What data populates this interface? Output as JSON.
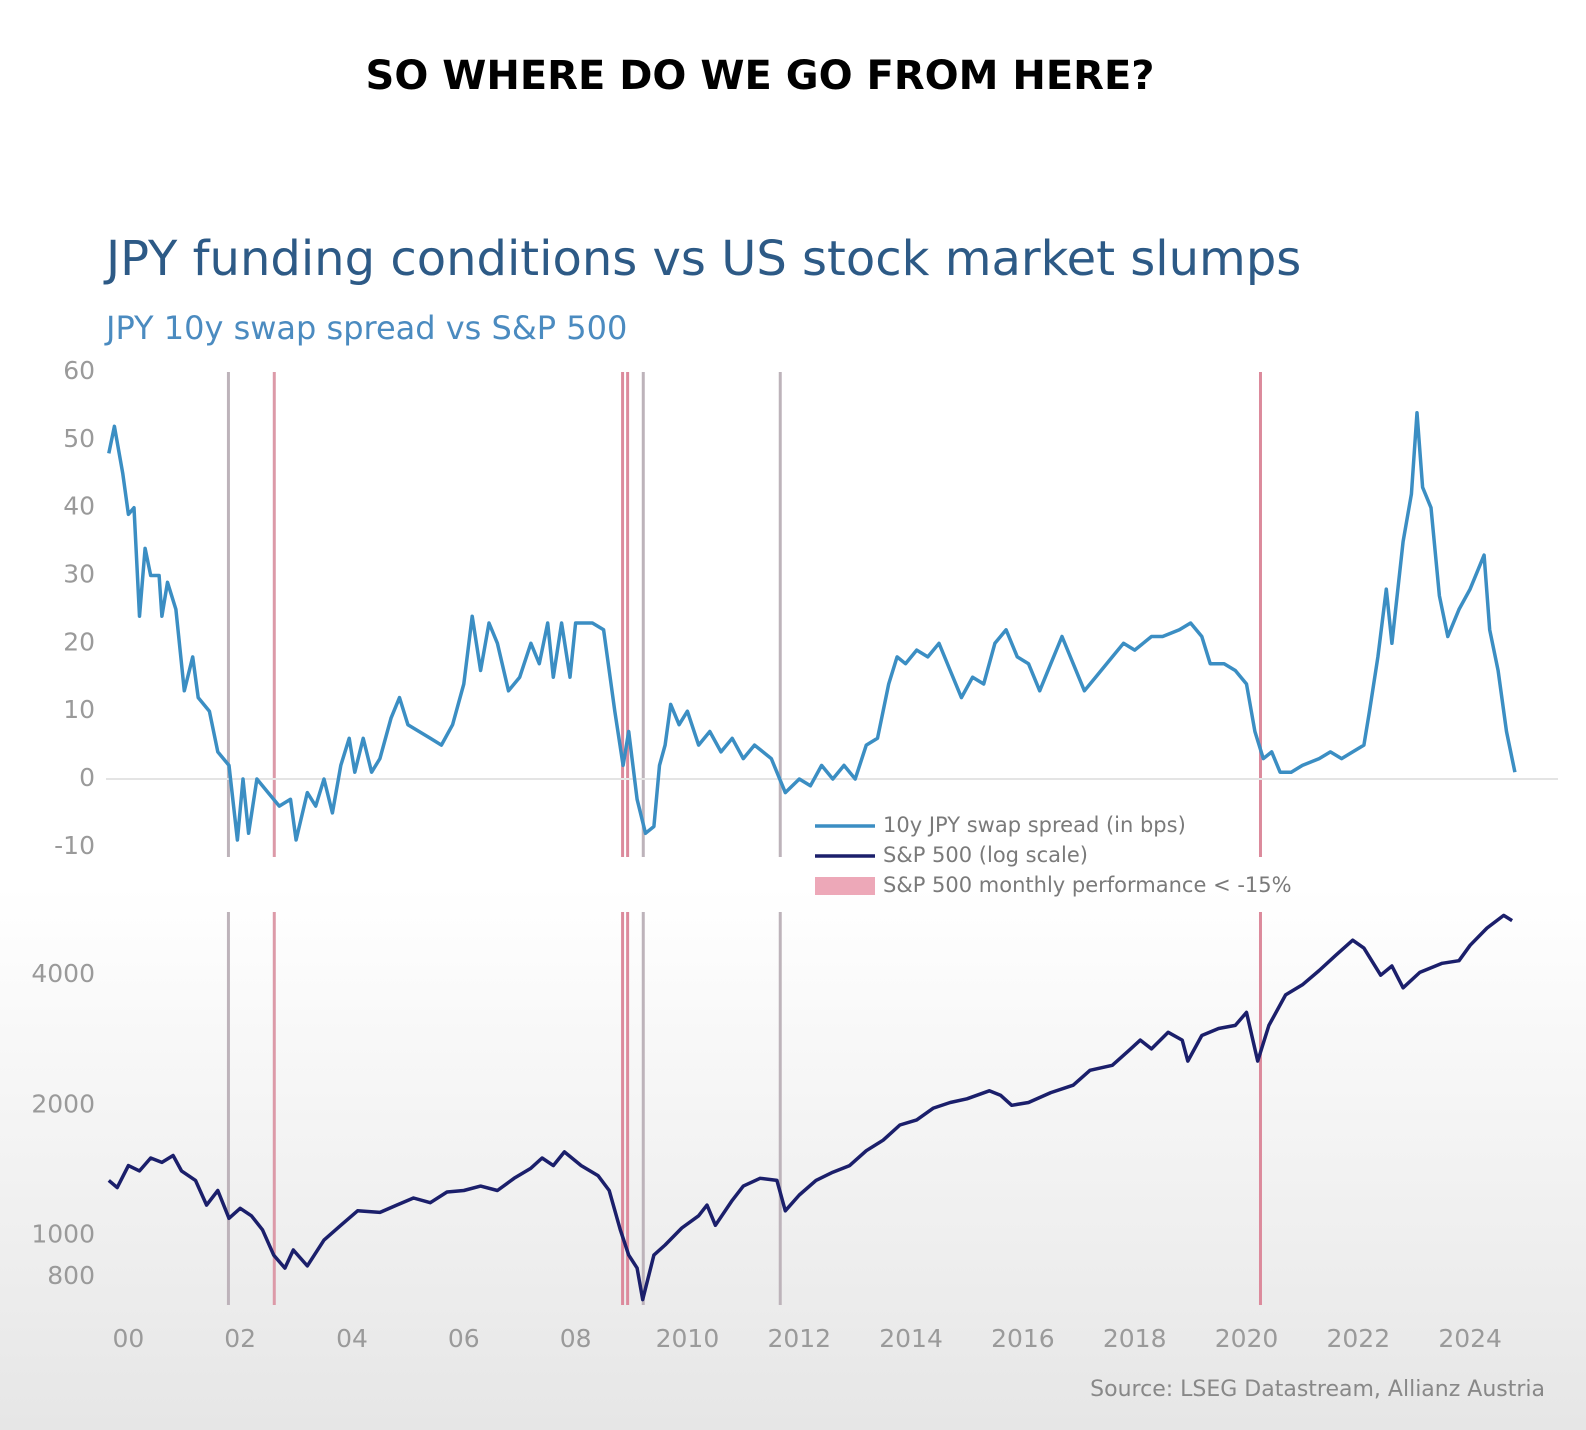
{
  "heading": "SO WHERE DO WE GO FROM HERE?",
  "chart_data": [
    {
      "type": "line",
      "title": "JPY funding conditions vs US stock market slumps",
      "subtitle": "JPY 10y swap spread vs S&P 500",
      "xlim": [
        1999.6,
        2025.5
      ],
      "ylim": [
        -11.5,
        60
      ],
      "yticks": [
        -10,
        0,
        10,
        20,
        30,
        40,
        50,
        60
      ],
      "zero_line": true,
      "legend": "lower center",
      "band_legend": {
        "label": "S&P 500 monthly performance < -15%",
        "color": "#eda8b8"
      },
      "slump_markers": [
        {
          "x": 2001.79,
          "color": "#bdb3ba"
        },
        {
          "x": 2002.61,
          "color": "#dc9aa8"
        },
        {
          "x": 2008.84,
          "color": "#dc8a9c"
        },
        {
          "x": 2008.93,
          "color": "#dc8a9c"
        },
        {
          "x": 2009.21,
          "color": "#bdb3ba"
        },
        {
          "x": 2011.66,
          "color": "#bdb3ba"
        },
        {
          "x": 2020.25,
          "color": "#dc8a9c"
        }
      ],
      "series": [
        {
          "name": "10y JPY swap spread (in bps)",
          "color": "#3b8ec3",
          "x": [
            1999.65,
            1999.75,
            1999.9,
            2000.0,
            2000.1,
            2000.2,
            2000.3,
            2000.4,
            2000.55,
            2000.6,
            2000.7,
            2000.85,
            2001.0,
            2001.15,
            2001.25,
            2001.45,
            2001.6,
            2001.8,
            2001.95,
            2002.05,
            2002.15,
            2002.3,
            2002.5,
            2002.7,
            2002.9,
            2003.0,
            2003.2,
            2003.35,
            2003.5,
            2003.65,
            2003.8,
            2003.95,
            2004.05,
            2004.2,
            2004.35,
            2004.5,
            2004.7,
            2004.85,
            2005.0,
            2005.2,
            2005.4,
            2005.6,
            2005.8,
            2006.0,
            2006.15,
            2006.3,
            2006.45,
            2006.6,
            2006.8,
            2007.0,
            2007.2,
            2007.35,
            2007.5,
            2007.6,
            2007.75,
            2007.9,
            2008.0,
            2008.3,
            2008.5,
            2008.7,
            2008.85,
            2008.95,
            2009.1,
            2009.25,
            2009.4,
            2009.5,
            2009.6,
            2009.7,
            2009.85,
            2010.0,
            2010.2,
            2010.4,
            2010.6,
            2010.8,
            2011.0,
            2011.2,
            2011.5,
            2011.75,
            2012.0,
            2012.2,
            2012.4,
            2012.6,
            2012.8,
            2013.0,
            2013.2,
            2013.4,
            2013.6,
            2013.75,
            2013.9,
            2014.1,
            2014.3,
            2014.5,
            2014.7,
            2014.9,
            2015.1,
            2015.3,
            2015.5,
            2015.7,
            2015.9,
            2016.1,
            2016.3,
            2016.5,
            2016.7,
            2016.9,
            2017.1,
            2017.3,
            2017.6,
            2017.8,
            2018.0,
            2018.3,
            2018.5,
            2018.8,
            2019.0,
            2019.2,
            2019.35,
            2019.6,
            2019.8,
            2020.0,
            2020.15,
            2020.3,
            2020.45,
            2020.6,
            2020.8,
            2021.0,
            2021.3,
            2021.5,
            2021.7,
            2021.9,
            2022.1,
            2022.2,
            2022.35,
            2022.5,
            2022.6,
            2022.8,
            2022.95,
            2023.05,
            2023.15,
            2023.3,
            2023.45,
            2023.6,
            2023.8,
            2024.0,
            2024.15,
            2024.25,
            2024.35,
            2024.5,
            2024.65,
            2024.8
          ],
          "values": [
            48,
            52,
            45,
            39,
            40,
            24,
            34,
            30,
            30,
            24,
            29,
            25,
            13,
            18,
            12,
            10,
            4,
            2,
            -9,
            0,
            -8,
            0,
            -2,
            -4,
            -3,
            -9,
            -2,
            -4,
            0,
            -5,
            2,
            6,
            1,
            6,
            1,
            3,
            9,
            12,
            8,
            7,
            6,
            5,
            8,
            14,
            24,
            16,
            23,
            20,
            13,
            15,
            20,
            17,
            23,
            15,
            23,
            15,
            23,
            23,
            22,
            10,
            2,
            7,
            -3,
            -8,
            -7,
            2,
            5,
            11,
            8,
            10,
            5,
            7,
            4,
            6,
            3,
            5,
            3,
            -2,
            0,
            -1,
            2,
            0,
            2,
            0,
            5,
            6,
            14,
            18,
            17,
            19,
            18,
            20,
            16,
            12,
            15,
            14,
            20,
            22,
            18,
            17,
            13,
            17,
            21,
            17,
            13,
            15,
            18,
            20,
            19,
            21,
            21,
            22,
            23,
            21,
            17,
            17,
            16,
            14,
            7,
            3,
            4,
            1,
            1,
            2,
            3,
            4,
            3,
            4,
            5,
            10,
            18,
            28,
            20,
            35,
            42,
            54,
            43,
            40,
            27,
            21,
            25,
            28,
            31,
            33,
            22,
            16,
            7,
            1
          ]
        }
      ]
    },
    {
      "type": "line",
      "log_y": true,
      "xlim": [
        1999.6,
        2025.5
      ],
      "ylim": [
        690,
        5600
      ],
      "yticks": [
        800,
        1000,
        2000,
        4000
      ],
      "xticks": [
        {
          "value": 2000,
          "label": "00"
        },
        {
          "value": 2002,
          "label": "02"
        },
        {
          "value": 2004,
          "label": "04"
        },
        {
          "value": 2006,
          "label": "06"
        },
        {
          "value": 2008,
          "label": "08"
        },
        2010,
        2012,
        2014,
        2016,
        2018,
        2020,
        2022,
        2024
      ],
      "source": "Source: LSEG Datastream, Allianz Austria",
      "series": [
        {
          "name": "S&P 500 (log scale)",
          "color": "#1b1f6b",
          "x": [
            1999.65,
            1999.8,
            2000.0,
            2000.2,
            2000.4,
            2000.6,
            2000.8,
            2000.95,
            2001.2,
            2001.4,
            2001.6,
            2001.8,
            2002.0,
            2002.2,
            2002.4,
            2002.6,
            2002.8,
            2002.95,
            2003.2,
            2003.5,
            2003.8,
            2004.1,
            2004.5,
            2004.8,
            2005.1,
            2005.4,
            2005.7,
            2006.0,
            2006.3,
            2006.6,
            2006.9,
            2007.2,
            2007.4,
            2007.6,
            2007.8,
            2008.1,
            2008.4,
            2008.6,
            2008.8,
            2008.95,
            2009.1,
            2009.2,
            2009.4,
            2009.6,
            2009.9,
            2010.2,
            2010.35,
            2010.5,
            2010.8,
            2011.0,
            2011.3,
            2011.6,
            2011.75,
            2012.0,
            2012.3,
            2012.6,
            2012.9,
            2013.2,
            2013.5,
            2013.8,
            2014.1,
            2014.4,
            2014.7,
            2015.0,
            2015.4,
            2015.6,
            2015.8,
            2016.1,
            2016.5,
            2016.9,
            2017.2,
            2017.6,
            2017.9,
            2018.1,
            2018.3,
            2018.6,
            2018.85,
            2018.95,
            2019.2,
            2019.5,
            2019.8,
            2020.0,
            2020.2,
            2020.4,
            2020.7,
            2021.0,
            2021.3,
            2021.6,
            2021.9,
            2022.1,
            2022.4,
            2022.6,
            2022.8,
            2023.1,
            2023.5,
            2023.8,
            2024.0,
            2024.3,
            2024.6,
            2024.75
          ],
          "values": [
            1340,
            1290,
            1450,
            1410,
            1510,
            1475,
            1530,
            1410,
            1340,
            1175,
            1270,
            1095,
            1155,
            1110,
            1030,
            900,
            840,
            925,
            850,
            975,
            1055,
            1140,
            1130,
            1175,
            1220,
            1190,
            1260,
            1270,
            1300,
            1270,
            1355,
            1430,
            1510,
            1450,
            1560,
            1450,
            1375,
            1270,
            1030,
            900,
            840,
            710,
            900,
            950,
            1040,
            1110,
            1175,
            1055,
            1205,
            1300,
            1355,
            1340,
            1140,
            1240,
            1340,
            1400,
            1450,
            1570,
            1660,
            1800,
            1850,
            1970,
            2030,
            2070,
            2160,
            2110,
            2000,
            2030,
            2140,
            2225,
            2410,
            2475,
            2680,
            2830,
            2700,
            2950,
            2830,
            2530,
            2900,
            3010,
            3060,
            3280,
            2530,
            3060,
            3600,
            3800,
            4100,
            4450,
            4820,
            4620,
            4000,
            4200,
            3740,
            4060,
            4260,
            4320,
            4690,
            5140,
            5500,
            5350
          ]
        }
      ]
    }
  ]
}
